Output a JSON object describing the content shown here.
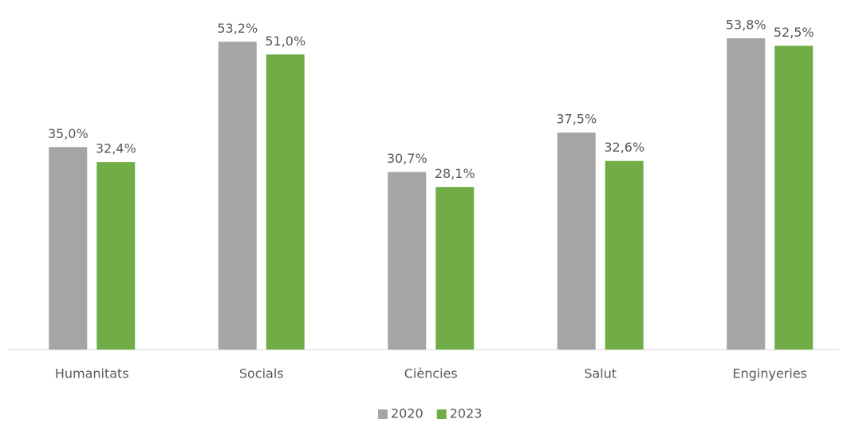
{
  "chart_data": {
    "type": "bar",
    "categories": [
      "Humanitats",
      "Socials",
      "Ciències",
      "Salut",
      "Enginyeries"
    ],
    "series": [
      {
        "name": "2020",
        "color": "#a5a5a5",
        "values": [
          35.0,
          53.2,
          30.7,
          37.5,
          53.8
        ],
        "value_labels": [
          "35,0%",
          "53,2%",
          "30,7%",
          "37,5%",
          "53,8%"
        ]
      },
      {
        "name": "2023",
        "color": "#70ad47",
        "values": [
          32.4,
          51.0,
          28.1,
          32.6,
          52.5
        ],
        "value_labels": [
          "32,4%",
          "51,0%",
          "28,1%",
          "32,6%",
          "52,5%"
        ]
      }
    ],
    "ylim": [
      0,
      60
    ],
    "legend": "bottom"
  }
}
